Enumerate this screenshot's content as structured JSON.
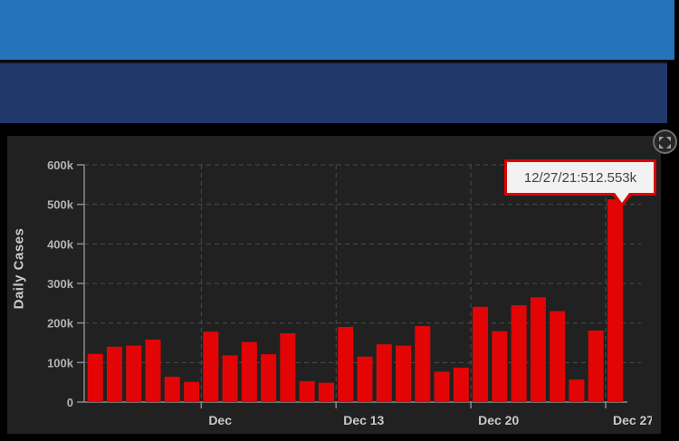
{
  "header": {
    "menu_icon": "hamburger-menu"
  },
  "chart": {
    "tooltip": {
      "text": "12/27/21:512.553k"
    },
    "expand_icon": "expand-arrows"
  },
  "chart_data": {
    "type": "bar",
    "title": "",
    "xlabel": "",
    "ylabel": "Daily Cases",
    "ylim": [
      0,
      600000
    ],
    "grid": true,
    "bar_color": "#e30505",
    "y_tick_labels": [
      "0",
      "100k",
      "200k",
      "300k",
      "400k",
      "500k",
      "600k"
    ],
    "x_tick_labels": [
      "Dec",
      "Dec 13",
      "Dec 20",
      "Dec 27"
    ],
    "x_tick_bar_indices": [
      6,
      13,
      20,
      27
    ],
    "values_in_thousands": [
      122,
      140,
      143,
      158,
      64,
      51,
      178,
      118,
      152,
      121,
      174,
      53,
      49,
      190,
      115,
      146,
      143,
      192,
      77,
      87,
      241,
      179,
      245,
      265,
      230,
      57,
      181,
      512.553
    ],
    "highlighted_point": {
      "label": "12/27/21",
      "value_k": 512.553
    }
  },
  "colors": {
    "header_blue": "#2573ba",
    "header_navy": "#21386b",
    "panel_bg": "#212121",
    "bar_red": "#e30505",
    "tooltip_border": "#dd0000",
    "axis_line": "#8a8a8a",
    "grid_line": "#4c4c4c",
    "y_label_text": "#b4b4b4",
    "x_label_text": "#c9c9c9"
  }
}
